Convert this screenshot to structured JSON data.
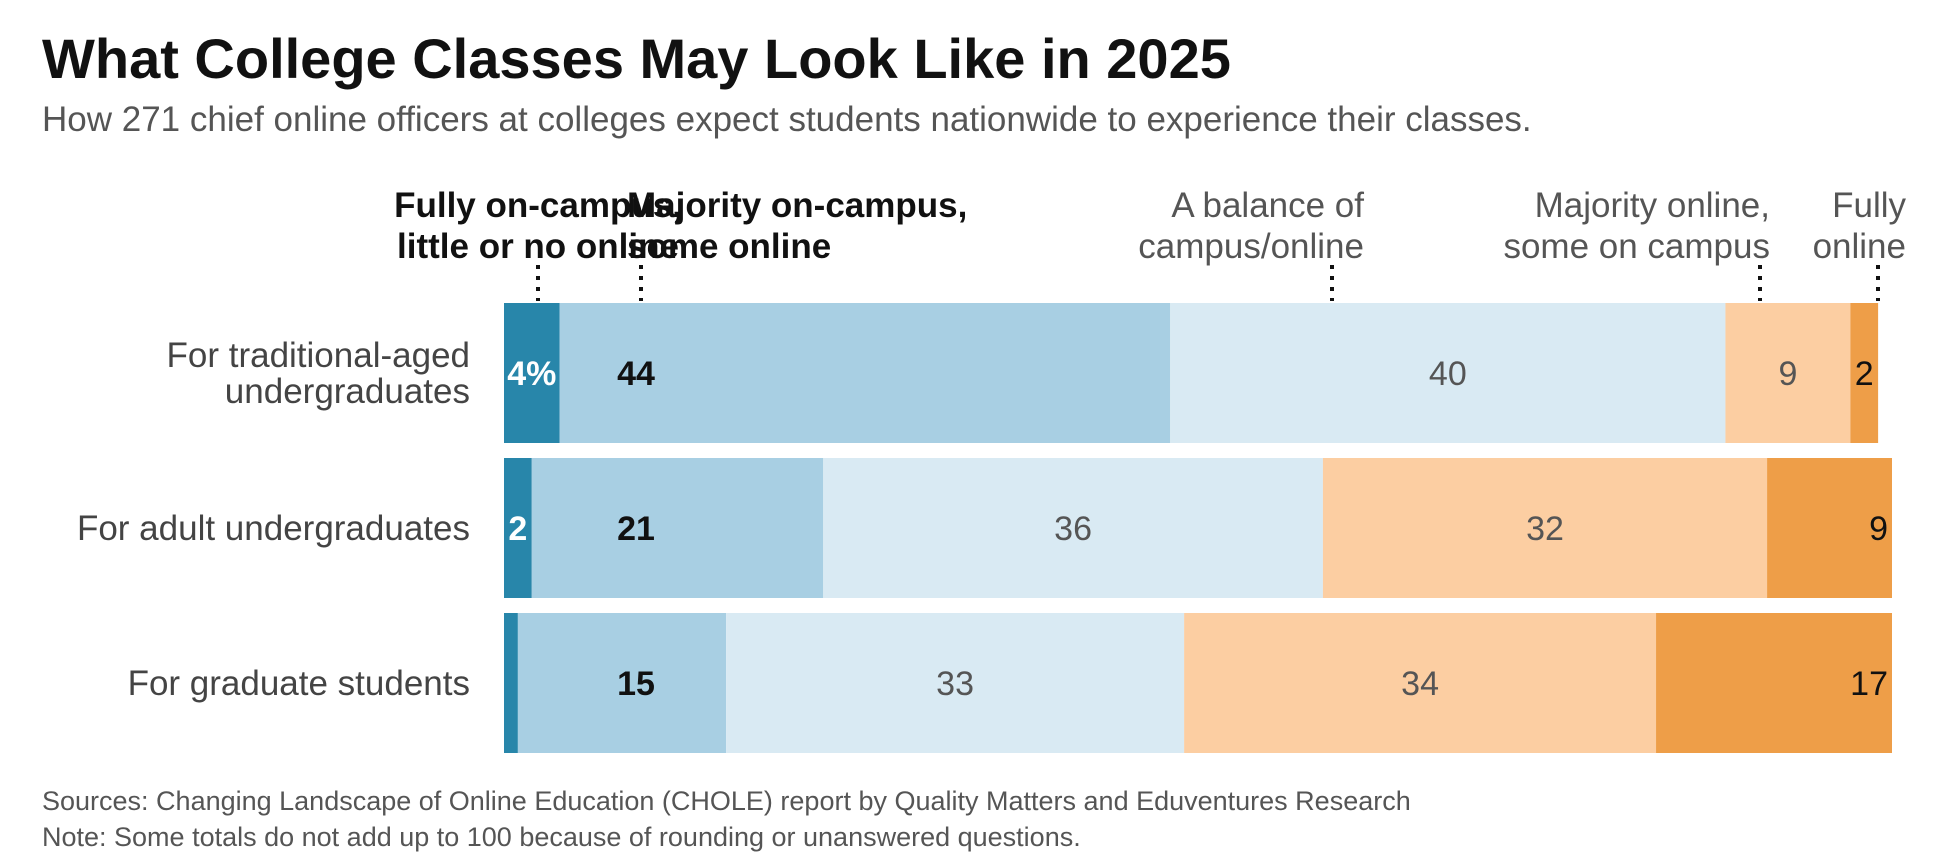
{
  "title": "What College Classes May Look Like in 2025",
  "subtitle": "How 271 chief online officers at colleges expect students nationwide to experience their classes.",
  "source": "Sources: Changing Landscape of Online Education (CHOLE) report by Quality Matters and Eduventures Research",
  "note": "Note: Some totals do not add up to 100 because of rounding or unanswered questions.",
  "colors": {
    "fully_campus": "#2886aa",
    "majority_campus": "#a8cfe3",
    "balance": "#d9eaf3",
    "majority_online": "#fcceA2",
    "fully_online": "#ee9e48"
  },
  "chart_data": {
    "type": "bar",
    "orientation": "horizontal",
    "stacked": true,
    "categories": [
      "For traditional-aged undergraduates",
      "For adult undergraduates",
      "For graduate students"
    ],
    "category_lines": [
      [
        "For traditional-aged",
        "undergraduates"
      ],
      [
        "For adult undergraduates"
      ],
      [
        "For graduate students"
      ]
    ],
    "series": [
      {
        "name": "Fully on-campus, little or no online",
        "name_lines": [
          "Fully on-campus,",
          "little or no online"
        ],
        "values": [
          4,
          2,
          1
        ],
        "labels": [
          "4%",
          "2",
          ""
        ],
        "color": "#2886aa",
        "header_bold": true,
        "label_color": "#ffffff",
        "label_bold": true
      },
      {
        "name": "Majority on-campus, some online",
        "name_lines": [
          "Majority on-campus,",
          "some online"
        ],
        "values": [
          44,
          21,
          15
        ],
        "labels": [
          "44",
          "21",
          "15"
        ],
        "color": "#a8cfe3",
        "header_bold": true,
        "label_color": "#111111",
        "label_bold": true
      },
      {
        "name": "A balance of campus/online",
        "name_lines": [
          "A balance of",
          "campus/online"
        ],
        "values": [
          40,
          36,
          33
        ],
        "labels": [
          "40",
          "36",
          "33"
        ],
        "color": "#d9eaf3",
        "header_bold": false,
        "label_color": "#555555",
        "label_bold": false
      },
      {
        "name": "Majority online, some on campus",
        "name_lines": [
          "Majority online,",
          "some on campus"
        ],
        "values": [
          9,
          32,
          34
        ],
        "labels": [
          "9",
          "32",
          "34"
        ],
        "color": "#fcceA2",
        "header_bold": false,
        "label_color": "#555555",
        "label_bold": false
      },
      {
        "name": "Fully online",
        "name_lines": [
          "Fully",
          "online"
        ],
        "values": [
          2,
          9,
          17
        ],
        "labels": [
          "2",
          "9",
          "17"
        ],
        "color": "#ee9e48",
        "header_bold": false,
        "label_color": "#111111",
        "label_bold": false
      }
    ],
    "xlim": [
      0,
      100
    ],
    "grid": false,
    "legend": "top"
  }
}
